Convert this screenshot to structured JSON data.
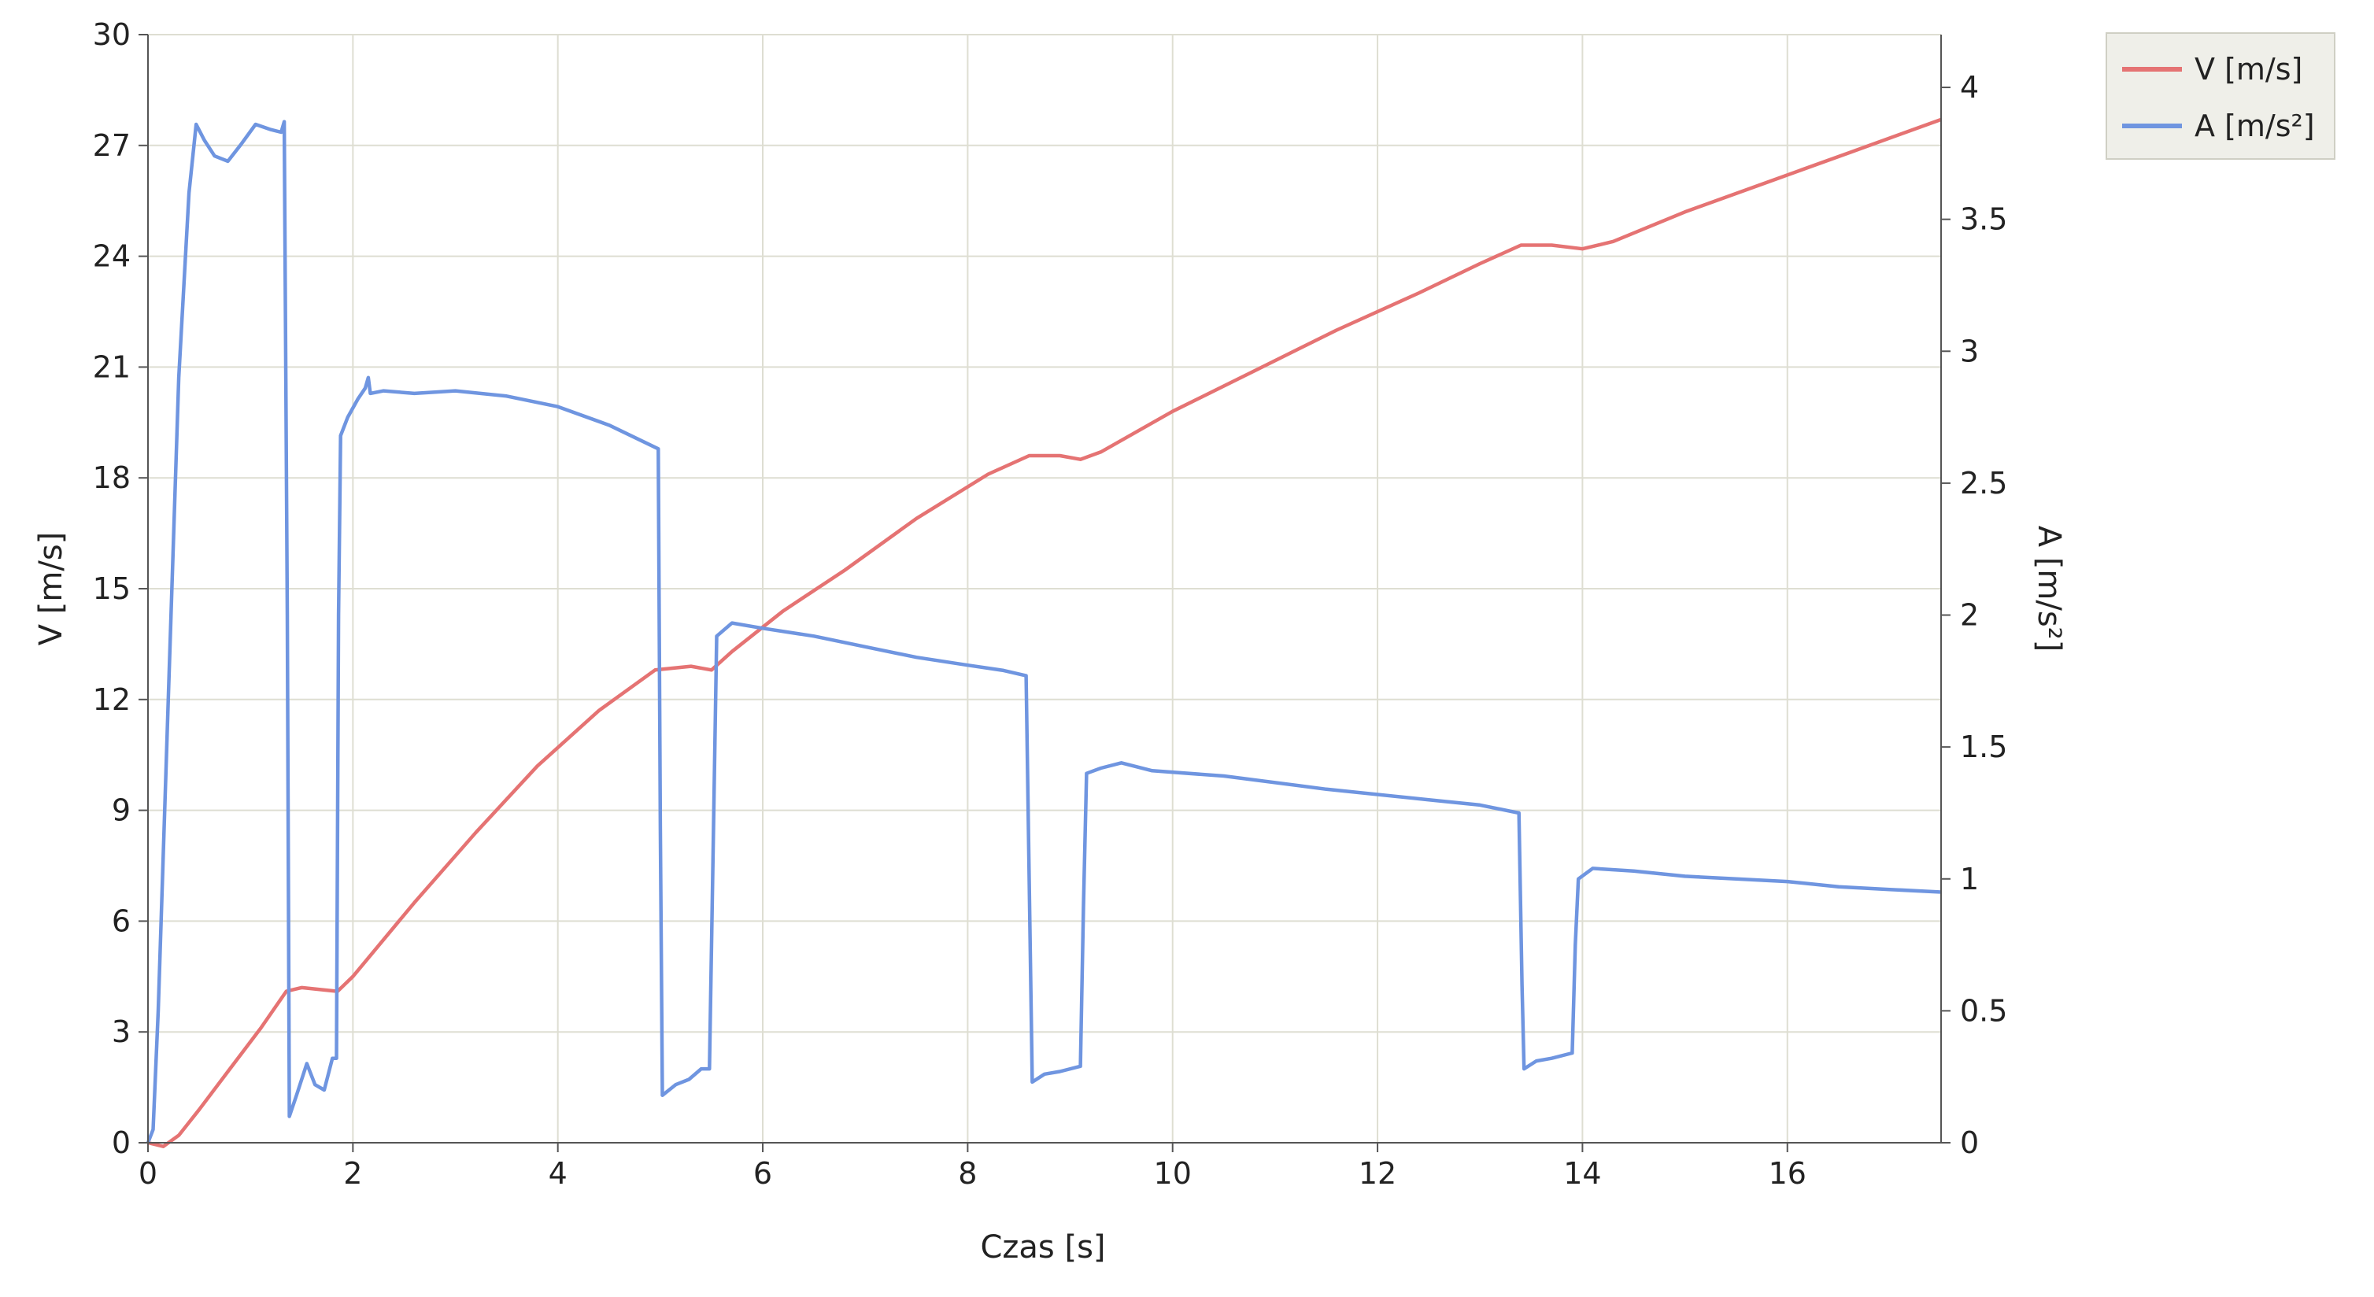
{
  "chart_data": {
    "type": "line",
    "xlabel": "Czas [s]",
    "ylabel": "V [m/s]",
    "y2label": "A [m/s²]",
    "xlim": [
      0,
      17.5
    ],
    "ylim": [
      0,
      30
    ],
    "y2lim": [
      0,
      4.2
    ],
    "x_ticks": [
      0,
      2,
      4,
      6,
      8,
      10,
      12,
      14,
      16
    ],
    "x_tick_labels": [
      "0",
      "2",
      "4",
      "6",
      "8",
      "10",
      "12",
      "14",
      "16"
    ],
    "y_ticks": [
      0,
      3,
      6,
      9,
      12,
      15,
      18,
      21,
      24,
      27,
      30
    ],
    "y_tick_labels": [
      "0",
      "3",
      "6",
      "9",
      "12",
      "15",
      "18",
      "21",
      "24",
      "27",
      "30"
    ],
    "y2_ticks": [
      0,
      0.5,
      1,
      1.5,
      2,
      2.5,
      3,
      3.5,
      4
    ],
    "y2_tick_labels": [
      "0",
      "0.5",
      "1",
      "1.5",
      "2",
      "2.5",
      "3",
      "3.5",
      "4"
    ],
    "grid": true,
    "legend_position": "top-right",
    "series": [
      {
        "name": "V [m/s]",
        "axis": "left",
        "color": "#e57373",
        "points": [
          [
            0,
            0
          ],
          [
            0.15,
            -0.1
          ],
          [
            0.3,
            0.2
          ],
          [
            0.5,
            0.9
          ],
          [
            0.8,
            2.0
          ],
          [
            1.1,
            3.1
          ],
          [
            1.35,
            4.1
          ],
          [
            1.5,
            4.2
          ],
          [
            1.85,
            4.1
          ],
          [
            2.0,
            4.5
          ],
          [
            2.6,
            6.5
          ],
          [
            3.2,
            8.4
          ],
          [
            3.8,
            10.2
          ],
          [
            4.4,
            11.7
          ],
          [
            4.95,
            12.8
          ],
          [
            5.3,
            12.9
          ],
          [
            5.5,
            12.8
          ],
          [
            5.7,
            13.3
          ],
          [
            6.2,
            14.4
          ],
          [
            6.8,
            15.5
          ],
          [
            7.5,
            16.9
          ],
          [
            8.2,
            18.1
          ],
          [
            8.6,
            18.6
          ],
          [
            8.9,
            18.6
          ],
          [
            9.1,
            18.5
          ],
          [
            9.3,
            18.7
          ],
          [
            10.0,
            19.8
          ],
          [
            10.8,
            20.9
          ],
          [
            11.6,
            22.0
          ],
          [
            12.4,
            23.0
          ],
          [
            13.0,
            23.8
          ],
          [
            13.4,
            24.3
          ],
          [
            13.7,
            24.3
          ],
          [
            14.0,
            24.2
          ],
          [
            14.3,
            24.4
          ],
          [
            15.0,
            25.2
          ],
          [
            15.8,
            26.0
          ],
          [
            16.6,
            26.8
          ],
          [
            17.5,
            27.7
          ]
        ]
      },
      {
        "name": "A [m/s²]",
        "axis": "right",
        "color": "#6f95e0",
        "points": [
          [
            0,
            0
          ],
          [
            0.05,
            0.05
          ],
          [
            0.1,
            0.5
          ],
          [
            0.2,
            1.7
          ],
          [
            0.3,
            2.9
          ],
          [
            0.4,
            3.6
          ],
          [
            0.47,
            3.86
          ],
          [
            0.55,
            3.8
          ],
          [
            0.65,
            3.74
          ],
          [
            0.78,
            3.72
          ],
          [
            0.9,
            3.78
          ],
          [
            1.05,
            3.86
          ],
          [
            1.2,
            3.84
          ],
          [
            1.3,
            3.83
          ],
          [
            1.33,
            3.87
          ],
          [
            1.36,
            2.0
          ],
          [
            1.38,
            0.1
          ],
          [
            1.45,
            0.18
          ],
          [
            1.55,
            0.3
          ],
          [
            1.63,
            0.22
          ],
          [
            1.72,
            0.2
          ],
          [
            1.8,
            0.32
          ],
          [
            1.84,
            0.32
          ],
          [
            1.86,
            2.0
          ],
          [
            1.88,
            2.68
          ],
          [
            1.95,
            2.75
          ],
          [
            2.05,
            2.82
          ],
          [
            2.12,
            2.86
          ],
          [
            2.15,
            2.9
          ],
          [
            2.17,
            2.84
          ],
          [
            2.3,
            2.85
          ],
          [
            2.6,
            2.84
          ],
          [
            3.0,
            2.85
          ],
          [
            3.5,
            2.83
          ],
          [
            4.0,
            2.79
          ],
          [
            4.5,
            2.72
          ],
          [
            4.98,
            2.63
          ],
          [
            5.0,
            1.2
          ],
          [
            5.02,
            0.18
          ],
          [
            5.15,
            0.22
          ],
          [
            5.28,
            0.24
          ],
          [
            5.4,
            0.28
          ],
          [
            5.48,
            0.28
          ],
          [
            5.52,
            1.2
          ],
          [
            5.55,
            1.92
          ],
          [
            5.7,
            1.97
          ],
          [
            6.0,
            1.95
          ],
          [
            6.5,
            1.92
          ],
          [
            7.0,
            1.88
          ],
          [
            7.5,
            1.84
          ],
          [
            8.0,
            1.81
          ],
          [
            8.35,
            1.79
          ],
          [
            8.57,
            1.77
          ],
          [
            8.6,
            1.0
          ],
          [
            8.63,
            0.23
          ],
          [
            8.75,
            0.26
          ],
          [
            8.9,
            0.27
          ],
          [
            9.1,
            0.29
          ],
          [
            9.13,
            0.9
          ],
          [
            9.16,
            1.4
          ],
          [
            9.3,
            1.42
          ],
          [
            9.5,
            1.44
          ],
          [
            9.8,
            1.41
          ],
          [
            10.5,
            1.39
          ],
          [
            11.5,
            1.34
          ],
          [
            12.5,
            1.3
          ],
          [
            13.0,
            1.28
          ],
          [
            13.38,
            1.25
          ],
          [
            13.41,
            0.6
          ],
          [
            13.43,
            0.28
          ],
          [
            13.55,
            0.31
          ],
          [
            13.7,
            0.32
          ],
          [
            13.9,
            0.34
          ],
          [
            13.93,
            0.75
          ],
          [
            13.96,
            1.0
          ],
          [
            14.1,
            1.04
          ],
          [
            14.5,
            1.03
          ],
          [
            15.0,
            1.01
          ],
          [
            15.5,
            1.0
          ],
          [
            16.0,
            0.99
          ],
          [
            16.5,
            0.97
          ],
          [
            17.0,
            0.96
          ],
          [
            17.5,
            0.95
          ]
        ]
      }
    ]
  }
}
